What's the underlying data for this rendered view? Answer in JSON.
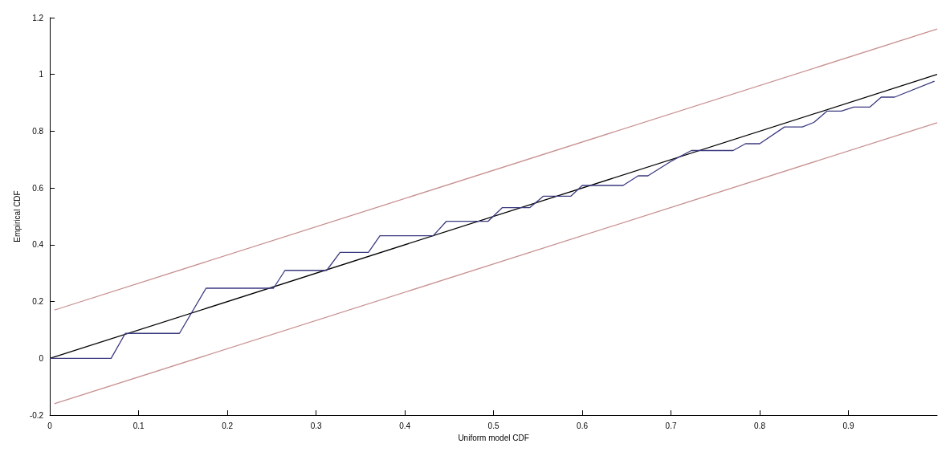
{
  "chart_data": {
    "type": "line",
    "xlabel": "Uniform model CDF",
    "ylabel": "Empirical CDF",
    "xlim": [
      0,
      1
    ],
    "xticks": [
      0,
      0.1,
      0.2,
      0.3,
      0.4,
      0.5,
      0.6,
      0.7,
      0.8,
      0.9
    ],
    "ylim": [
      -0.2,
      1.2
    ],
    "yticks": [
      -0.2,
      0,
      0.2,
      0.4,
      0.6,
      0.8,
      1,
      1.2
    ],
    "grid": false,
    "marker": "none",
    "line_style": "solid",
    "series": [
      {
        "color": "#c89090",
        "x": [
          0.005,
          1
        ],
        "values": [
          0.17,
          1.16
        ]
      },
      {
        "color": "#c89090",
        "x": [
          0.005,
          1
        ],
        "values": [
          -0.16,
          0.83
        ]
      },
      {
        "color": "#000000",
        "x": [
          0,
          1
        ],
        "values": [
          0,
          1
        ]
      },
      {
        "color": "#3a3a80",
        "x": [
          0,
          0.069,
          0.085,
          0.146,
          0.176,
          0.252,
          0.265,
          0.312,
          0.327,
          0.359,
          0.372,
          0.432,
          0.447,
          0.494,
          0.51,
          0.541,
          0.556,
          0.587,
          0.6,
          0.646,
          0.663,
          0.674,
          0.7,
          0.723,
          0.77,
          0.784,
          0.8,
          0.828,
          0.848,
          0.861,
          0.876,
          0.892,
          0.906,
          0.924,
          0.937,
          0.952,
          0.997
        ],
        "values": [
          0,
          0,
          0.088,
          0.088,
          0.247,
          0.247,
          0.31,
          0.31,
          0.373,
          0.373,
          0.432,
          0.432,
          0.483,
          0.483,
          0.531,
          0.531,
          0.571,
          0.571,
          0.609,
          0.609,
          0.643,
          0.643,
          0.694,
          0.732,
          0.732,
          0.756,
          0.756,
          0.815,
          0.815,
          0.831,
          0.871,
          0.871,
          0.885,
          0.885,
          0.92,
          0.92,
          0.976
        ]
      }
    ]
  }
}
